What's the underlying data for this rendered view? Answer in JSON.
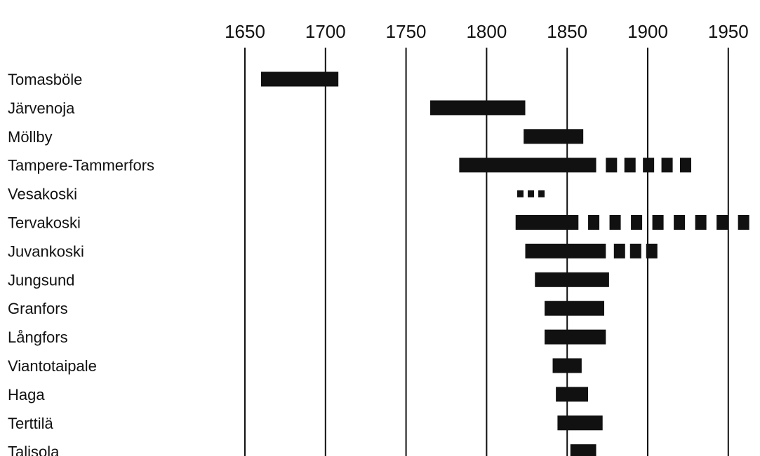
{
  "chart_data": {
    "type": "bar",
    "orientation": "horizontal-timeline",
    "title": "",
    "xlabel": "",
    "ylabel": "",
    "x_ticks": [
      1650,
      1700,
      1750,
      1800,
      1850,
      1900,
      1950
    ],
    "xlim": [
      1640,
      1963
    ],
    "grid": "vertical lines at ticks",
    "legend": "none",
    "colors": {
      "bar": "#111111",
      "grid": "#111111",
      "background": "#ffffff"
    },
    "series_style": [
      {
        "name": "solid",
        "style": "solid bar"
      },
      {
        "name": "dashed",
        "style": "dashed bar"
      }
    ],
    "rows": [
      {
        "label": "Tomasböle",
        "solid": [
          1660,
          1708
        ],
        "dashed": null
      },
      {
        "label": "Järvenoja",
        "solid": [
          1765,
          1824
        ],
        "dashed": null
      },
      {
        "label": "Möllby",
        "solid": [
          1823,
          1860
        ],
        "dashed": null
      },
      {
        "label": "Tampere-Tammerfors",
        "solid": [
          1783,
          1868
        ],
        "dashed": [
          1874,
          1927
        ]
      },
      {
        "label": "Vesakoski",
        "solid": null,
        "dashed": [
          1819,
          1836
        ]
      },
      {
        "label": "Tervakoski",
        "solid": [
          1818,
          1857
        ],
        "dashed": [
          1863,
          1963
        ]
      },
      {
        "label": "Juvankoski",
        "solid": [
          1824,
          1874
        ],
        "dashed": [
          1879,
          1906
        ]
      },
      {
        "label": "Jungsund",
        "solid": [
          1830,
          1876
        ],
        "dashed": null
      },
      {
        "label": "Granfors",
        "solid": [
          1836,
          1873
        ],
        "dashed": null
      },
      {
        "label": "Långfors",
        "solid": [
          1836,
          1874
        ],
        "dashed": null
      },
      {
        "label": "Viantotaipale",
        "solid": [
          1841,
          1859
        ],
        "dashed": null
      },
      {
        "label": "Haga",
        "solid": [
          1843,
          1863
        ],
        "dashed": null
      },
      {
        "label": "Terttilä",
        "solid": [
          1844,
          1872
        ],
        "dashed": null
      },
      {
        "label": "Talisola",
        "solid": [
          1852,
          1868
        ],
        "dashed": null
      }
    ]
  }
}
